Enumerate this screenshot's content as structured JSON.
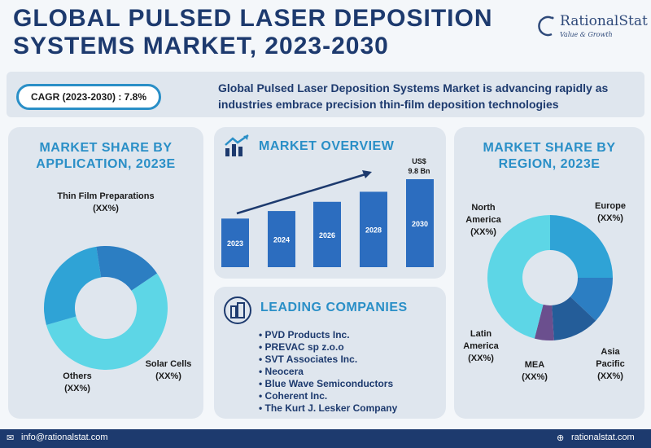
{
  "header": {
    "title_line1": "GLOBAL PULSED LASER DEPOSITION",
    "title_line2": "SYSTEMS MARKET, 2023-2030",
    "logo_name": "RationalStat",
    "logo_tagline": "Value & Growth"
  },
  "banner": {
    "cagr": "CAGR (2023-2030) : 7.8%",
    "text": "Global Pulsed Laser Deposition Systems Market is advancing rapidly as industries embrace precision thin-film deposition technologies"
  },
  "colors": {
    "navy": "#1d3a6e",
    "accent": "#2a8fc7",
    "cyan": "#5dd6e6",
    "blue": "#2c7ec2",
    "purple": "#6b4f8e",
    "bar": "#2c6dbf"
  },
  "chart_data": [
    {
      "type": "pie",
      "title_line1": "MARKET SHARE BY",
      "title_line2": "APPLICATION, 2023E",
      "slices": [
        {
          "label": "Thin Film Preparations",
          "value": 55,
          "value_label": "(XX%)",
          "color": "#5dd6e6"
        },
        {
          "label": "Solar Cells",
          "value": 27,
          "value_label": "(XX%)",
          "color": "#2fa3d6"
        },
        {
          "label": "Others",
          "value": 18,
          "value_label": "(XX%)",
          "color": "#2c7ec2"
        }
      ]
    },
    {
      "type": "bar",
      "title": "MARKET OVERVIEW",
      "categories": [
        "2023",
        "2024",
        "2026",
        "2028",
        "2030"
      ],
      "values": [
        5.8,
        6.7,
        7.8,
        9.0,
        10.5
      ],
      "annotation_line1": "US$",
      "annotation_line2": "9.8 Bn"
    },
    {
      "type": "pie",
      "title_line1": "MARKET SHARE BY",
      "title_line2": "REGION, 2023E",
      "slices": [
        {
          "label": "Europe",
          "value": 25,
          "value_label": "(XX%)",
          "color": "#2fa3d6"
        },
        {
          "label": "Asia Pacific",
          "value": 12,
          "value_label": "(XX%)",
          "color": "#2c7ec2"
        },
        {
          "label": "MEA",
          "value": 12,
          "value_label": "(XX%)",
          "color": "#245d99"
        },
        {
          "label": "Latin America",
          "value": 5,
          "value_label": "(XX%)",
          "color": "#6b4f8e"
        },
        {
          "label": "North America",
          "value": 46,
          "value_label": "(XX%)",
          "color": "#5dd6e6"
        }
      ]
    }
  ],
  "companies": {
    "title": "LEADING COMPANIES",
    "items": [
      "PVD Products Inc.",
      "PREVAC sp z.o.o",
      "SVT Associates Inc.",
      "Neocera",
      "Blue Wave Semiconductors",
      "Coherent Inc.",
      "The Kurt J. Lesker Company"
    ]
  },
  "footer": {
    "email": "info@rationalstat.com",
    "website": "rationalstat.com"
  }
}
